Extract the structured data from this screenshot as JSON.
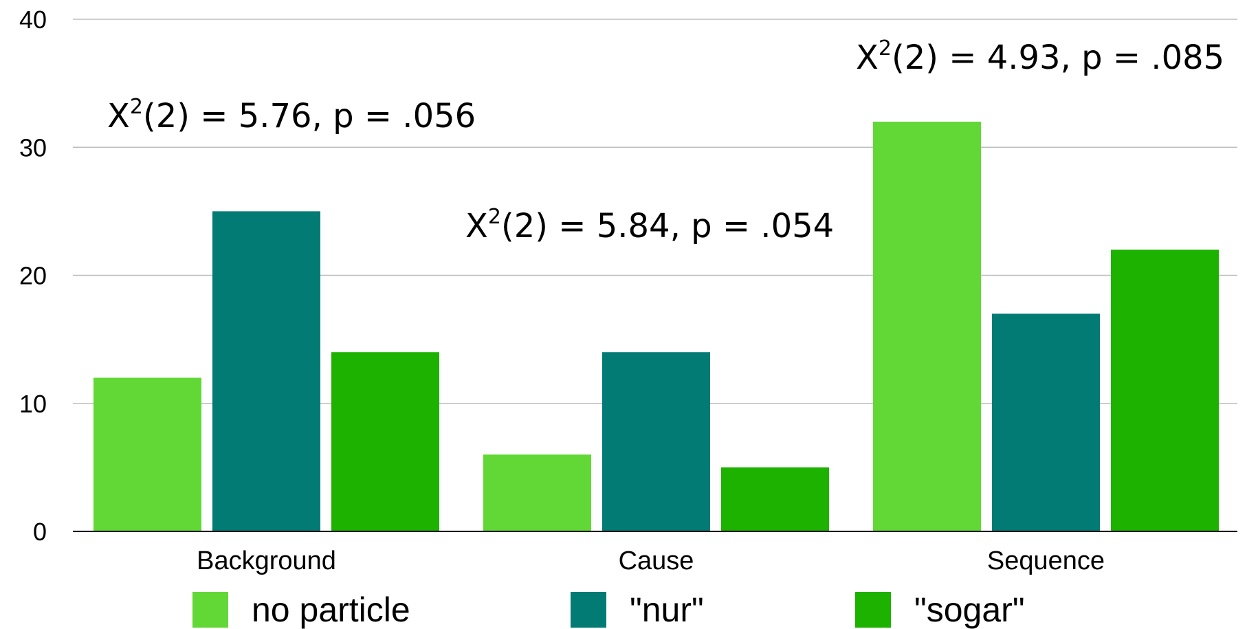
{
  "chart_data": {
    "type": "bar",
    "title": "",
    "xlabel": "",
    "ylabel": "",
    "categories": [
      "Background",
      "Cause",
      "Sequence"
    ],
    "series": [
      {
        "name": "no particle",
        "color": "#62d836",
        "values": [
          12,
          6,
          32
        ]
      },
      {
        "name": "\"nur\"",
        "color": "#027b75",
        "values": [
          25,
          14,
          17
        ]
      },
      {
        "name": "\"sogar\"",
        "color": "#1db100",
        "values": [
          14,
          5,
          22
        ]
      }
    ],
    "ylim": [
      0,
      40
    ],
    "yticks": [
      0,
      10,
      20,
      30,
      40
    ],
    "grid": true,
    "legend_position": "bottom",
    "annotations": [
      {
        "category": "Background",
        "pre": "X",
        "sup": "2",
        "post": "(2) = 5.76, p = .056"
      },
      {
        "category": "Cause",
        "pre": "X",
        "sup": "2",
        "post": "(2) = 5.84, p = .054"
      },
      {
        "category": "Sequence",
        "pre": "X",
        "sup": "2",
        "post": "(2) = 4.93, p = .085"
      }
    ]
  }
}
